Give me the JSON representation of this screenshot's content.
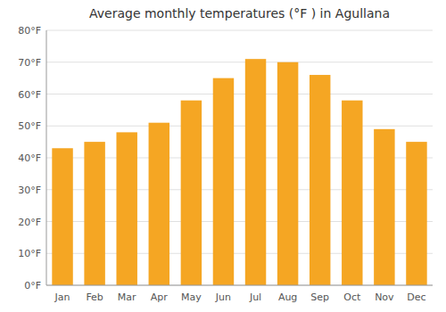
{
  "chart_data": {
    "type": "bar",
    "title": "Average monthly temperatures (°F ) in Agullana",
    "categories": [
      "Jan",
      "Feb",
      "Mar",
      "Apr",
      "May",
      "Jun",
      "Jul",
      "Aug",
      "Sep",
      "Oct",
      "Nov",
      "Dec"
    ],
    "values": [
      43,
      45,
      48,
      51,
      58,
      65,
      71,
      70,
      66,
      58,
      49,
      45
    ],
    "color": "#F5A623",
    "ylim": [
      0,
      80
    ],
    "yticks": [
      {
        "value": 0,
        "label": "0°F"
      },
      {
        "value": 10,
        "label": "10°F"
      },
      {
        "value": 20,
        "label": "20°F"
      },
      {
        "value": 30,
        "label": "30°F"
      },
      {
        "value": 40,
        "label": "40°F"
      },
      {
        "value": 50,
        "label": "50°F"
      },
      {
        "value": 60,
        "label": "60°F"
      },
      {
        "value": 70,
        "label": "70°F"
      },
      {
        "value": 80,
        "label": "80°F"
      }
    ],
    "grid": true
  }
}
